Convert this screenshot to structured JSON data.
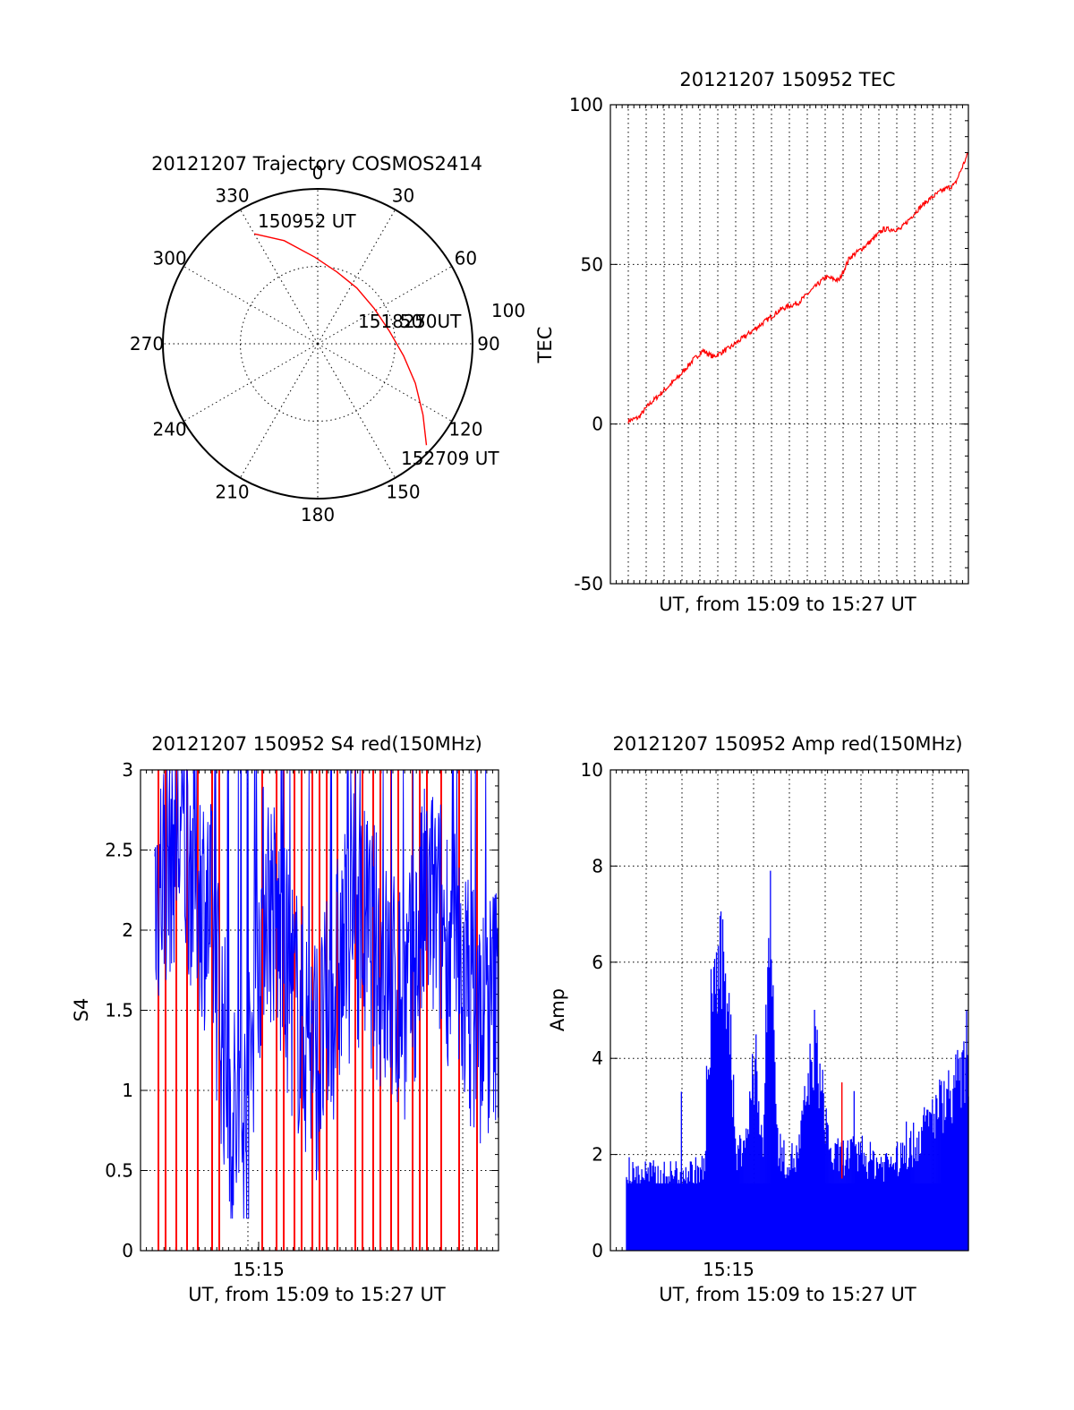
{
  "chart_data": [
    {
      "type": "polar",
      "panel": "trajectory",
      "title": "20121207 Trajectory COSMOS2414",
      "azimuth_labels": [
        "0",
        "30",
        "60",
        "90",
        "120",
        "150",
        "180",
        "210",
        "240",
        "270",
        "300",
        "330"
      ],
      "radial_labels": [
        "50",
        "100"
      ],
      "rlim": [
        0,
        100
      ],
      "grid": true,
      "series": [
        {
          "color": "#ff0000",
          "points": [
            {
              "az": 330,
              "r": 82
            },
            {
              "az": 342,
              "r": 70
            },
            {
              "az": 358,
              "r": 56
            },
            {
              "az": 15,
              "r": 48
            },
            {
              "az": 35,
              "r": 44
            },
            {
              "az": 58,
              "r": 43
            },
            {
              "az": 80,
              "r": 47
            },
            {
              "az": 98,
              "r": 56
            },
            {
              "az": 112,
              "r": 68
            },
            {
              "az": 124,
              "r": 82
            },
            {
              "az": 133,
              "r": 96
            }
          ]
        }
      ],
      "annotations": [
        "150952 UT",
        "151827",
        "50UT",
        "152709 UT"
      ]
    },
    {
      "type": "line",
      "panel": "tec",
      "title": "20121207 150952 TEC",
      "xlabel": "UT, from 15:09 to 15:27 UT",
      "ylabel": "TEC",
      "xlim": [
        0,
        1
      ],
      "ylim": [
        -50,
        100
      ],
      "yticks": [
        "-50",
        "0",
        "50",
        "100"
      ],
      "grid": true,
      "series": [
        {
          "color": "#ff0000",
          "x": [
            0,
            0.03,
            0.06,
            0.1,
            0.15,
            0.19,
            0.22,
            0.25,
            0.3,
            0.35,
            0.4,
            0.45,
            0.5,
            0.54,
            0.58,
            0.62,
            0.65,
            0.7,
            0.75,
            0.8,
            0.85,
            0.88,
            0.92,
            0.96,
            1.0
          ],
          "y": [
            1,
            2,
            6,
            10,
            15,
            20,
            23,
            21,
            24,
            28,
            32,
            36,
            38,
            42,
            46,
            45,
            52,
            56,
            61,
            61,
            67,
            70,
            73,
            75,
            85
          ]
        }
      ]
    },
    {
      "type": "line",
      "panel": "s4",
      "title": "20121207 150952 S4 red(150MHz)",
      "xlabel": "UT, from 15:09 to 15:27 UT",
      "ylabel": "S4",
      "xlim": [
        0,
        1
      ],
      "ylim": [
        0,
        3
      ],
      "yticks": [
        "0",
        "0.5",
        "1",
        "1.5",
        "2",
        "2.5",
        "3"
      ],
      "xtick_labels": [
        {
          "x": 0.33,
          "label": "15:15"
        }
      ],
      "grid": true,
      "series": [
        {
          "color": "#0000ff",
          "x": [
            0.05,
            0.1,
            0.15,
            0.2,
            0.25,
            0.28,
            0.3,
            0.32,
            0.35,
            0.4,
            0.45,
            0.5,
            0.55,
            0.6,
            0.65,
            0.7,
            0.75,
            0.8,
            0.85,
            0.9,
            0.95,
            1.0
          ],
          "y": [
            2.3,
            2.6,
            2.4,
            2.0,
            0.9,
            0.7,
            0.85,
            1.7,
            2.3,
            1.8,
            1.4,
            1.2,
            1.7,
            2.1,
            1.9,
            1.6,
            1.6,
            2.2,
            2.0,
            1.7,
            1.4,
            1.6
          ]
        },
        {
          "color": "#ff0000",
          "spikes_x": [
            0.05,
            0.07,
            0.1,
            0.13,
            0.16,
            0.2,
            0.22,
            0.34,
            0.38,
            0.4,
            0.43,
            0.45,
            0.48,
            0.5,
            0.52,
            0.55,
            0.6,
            0.62,
            0.65,
            0.67,
            0.7,
            0.72,
            0.76,
            0.78,
            0.8,
            0.84,
            0.89,
            0.94
          ]
        }
      ]
    },
    {
      "type": "bar",
      "panel": "amp",
      "title": "20121207 150952 Amp red(150MHz)",
      "xlabel": "UT, from 15:09 to 15:27 UT",
      "ylabel": "Amp",
      "xlim": [
        0,
        1
      ],
      "ylim": [
        0,
        10
      ],
      "yticks": [
        "0",
        "2",
        "4",
        "6",
        "8",
        "10"
      ],
      "xtick_labels": [
        {
          "x": 0.33,
          "label": "15:15"
        }
      ],
      "grid": true,
      "series": [
        {
          "color": "#0000ff",
          "x": [
            0,
            0.05,
            0.1,
            0.15,
            0.2,
            0.23,
            0.25,
            0.28,
            0.3,
            0.32,
            0.35,
            0.38,
            0.4,
            0.42,
            0.44,
            0.46,
            0.5,
            0.55,
            0.6,
            0.65,
            0.7,
            0.75,
            0.8,
            0.85,
            0.9,
            0.95,
            1.0
          ],
          "y": [
            1.6,
            1.7,
            1.6,
            1.7,
            1.7,
            1.8,
            5.8,
            6.2,
            5.5,
            2.0,
            2.5,
            4.0,
            2.2,
            8.0,
            2.4,
            2.0,
            2.0,
            4.5,
            2.0,
            2.1,
            2.0,
            1.9,
            2.0,
            2.4,
            3.0,
            3.5,
            4.0
          ]
        },
        {
          "color": "#ff0000",
          "x": [
            0.63
          ],
          "y": [
            3.5
          ]
        }
      ]
    }
  ]
}
